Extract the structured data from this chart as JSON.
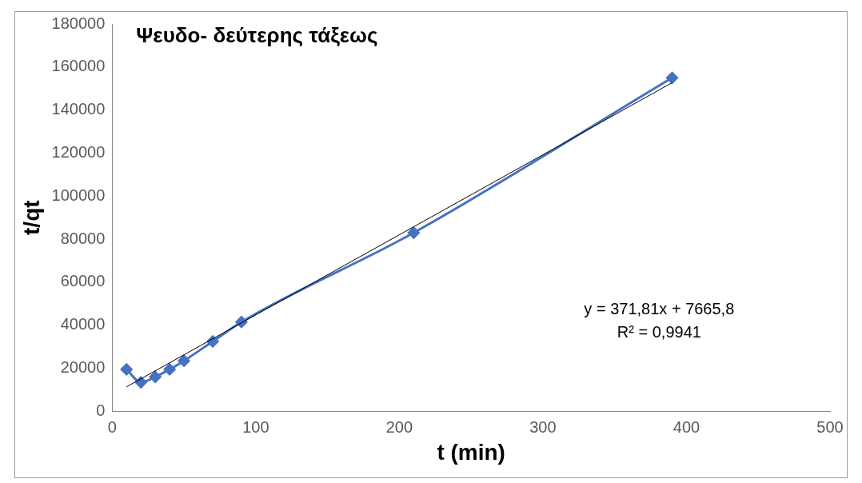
{
  "chart_data": {
    "type": "line",
    "title": "Ψευδο- δεύτερης τάξεως",
    "xlabel": "t (min)",
    "ylabel": "t/qt",
    "xlim": [
      0,
      500
    ],
    "xticks": [
      0,
      100,
      200,
      300,
      400,
      500
    ],
    "ylim": [
      0,
      180000
    ],
    "yticks": [
      0,
      20000,
      40000,
      60000,
      80000,
      100000,
      120000,
      140000,
      160000,
      180000
    ],
    "grid": false,
    "legend": false,
    "marker": "diamond",
    "line_style": "solid",
    "series": [
      {
        "color": "#4472c4",
        "x": [
          10,
          20,
          30,
          40,
          50,
          70,
          90,
          210,
          390
        ],
        "values": [
          19500,
          13500,
          16000,
          19500,
          23500,
          32500,
          41500,
          83000,
          155000
        ]
      },
      {
        "color": "#000000",
        "marker": "none",
        "x": [
          10,
          390
        ],
        "values": [
          11400,
          152700
        ]
      }
    ],
    "annotations": [
      "y = 371,81x + 7665,8",
      "R² = 0,9941"
    ]
  }
}
